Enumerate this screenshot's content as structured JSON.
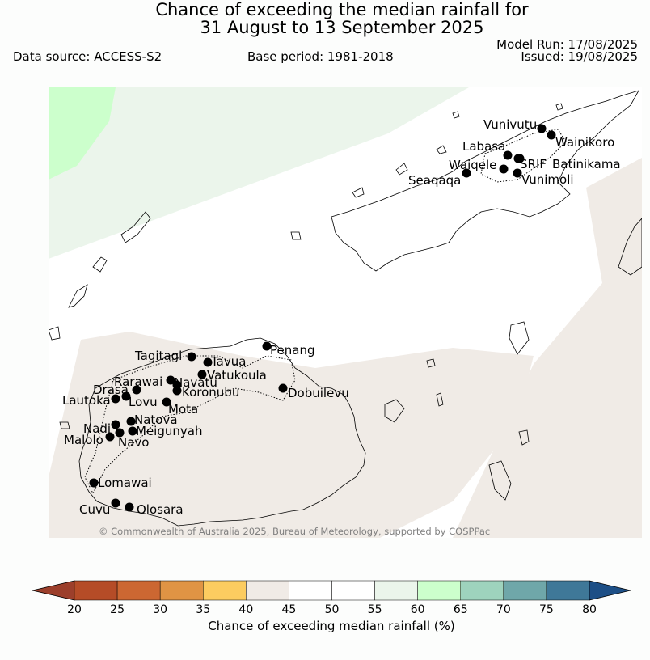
{
  "header": {
    "title_line1": "Chance of exceeding the median rainfall for",
    "title_line2": "31 August to 13 September 2025",
    "data_source": "Data source: ACCESS-S2",
    "base_period": "Base period: 1981-2018",
    "model_run": "Model Run: 17/08/2025",
    "issued": "Issued: 19/08/2025"
  },
  "map": {
    "copyright": "© Commonwealth of Australia 2025, Bureau of Meteorology, supported by COSPPac",
    "stations": [
      "Vunivutu",
      "Wainikoro",
      "Labasa",
      "Waiqele",
      "SRIF",
      "Batinikama",
      "Seaqaqa",
      "Vunimoli",
      "Tagitagi",
      "Tavua",
      "Penang",
      "Vatukoula",
      "Rarawai",
      "Navatu",
      "Drasa",
      "Koronubu",
      "Lautoka",
      "Lovu",
      "Dobuilevu",
      "Mota",
      "Natova",
      "Nadi",
      "Meigunyah",
      "Malolo",
      "Navo",
      "Lomawai",
      "Cuvu",
      "Olosara"
    ]
  },
  "colorbar": {
    "label": "Chance of exceeding median rainfall (%)",
    "ticks": [
      "20",
      "25",
      "30",
      "35",
      "40",
      "45",
      "50",
      "55",
      "60",
      "65",
      "70",
      "75",
      "80"
    ],
    "colors": [
      "#9c3f2b",
      "#b54c27",
      "#cc6732",
      "#e09444",
      "#fccc60",
      "#f0ebe6",
      "#ffffff",
      "#ffffff",
      "#ebf5eb",
      "#ccffcc",
      "#9ed3bd",
      "#6fa7a9",
      "#3f7898",
      "#1d4f86"
    ]
  }
}
